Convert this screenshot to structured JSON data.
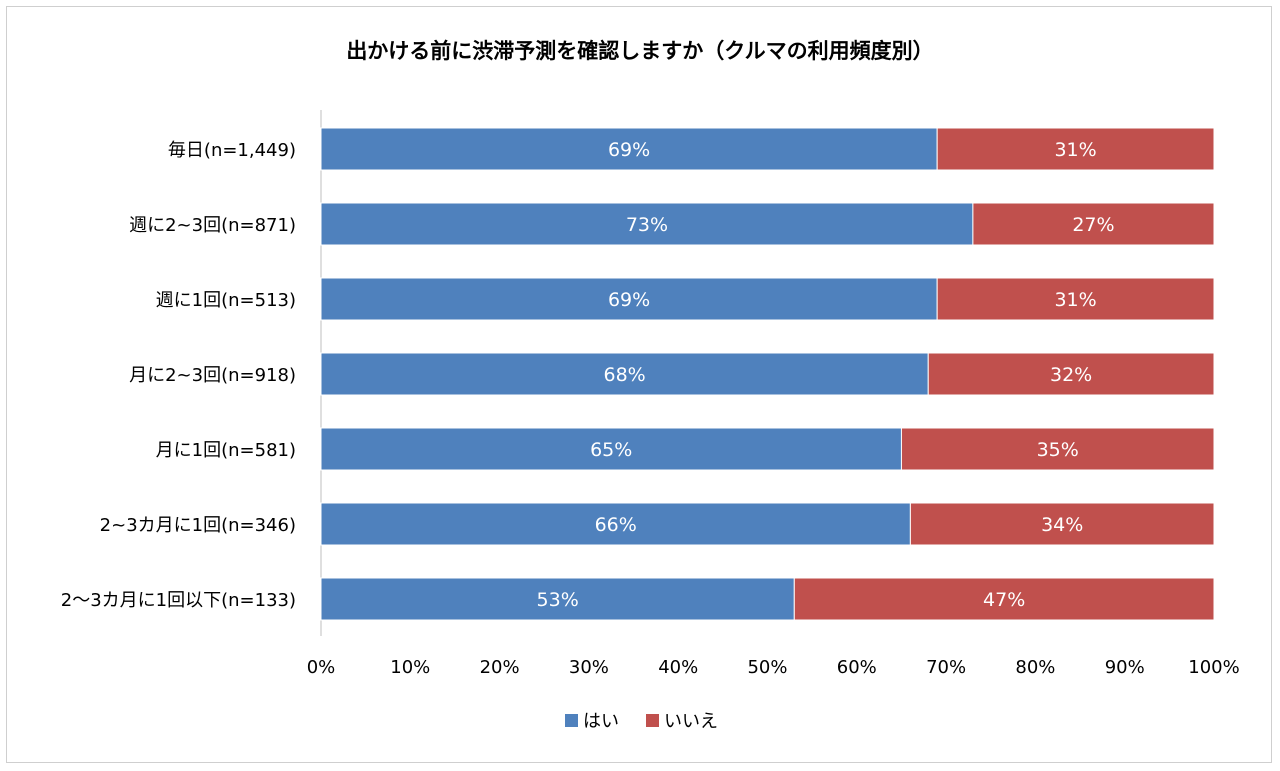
{
  "chart_data": {
    "type": "bar",
    "stacked": true,
    "orientation": "horizontal",
    "title": "出かける前に渋滞予測を確認しますか（クルマの利用頻度別）",
    "categories": [
      "毎日(n=1,449)",
      "週に2~3回(n=871)",
      "週に1回(n=513)",
      "月に2~3回(n=918)",
      "月に1回(n=581)",
      "2~3カ月に1回(n=346)",
      "2～3カ月に1回以下(n=133)"
    ],
    "series": [
      {
        "name": "はい",
        "color": "#4f81bd",
        "values": [
          69,
          73,
          69,
          68,
          65,
          66,
          53
        ],
        "labels": [
          "69%",
          "73%",
          "69%",
          "68%",
          "65%",
          "66%",
          "53%"
        ]
      },
      {
        "name": "いいえ",
        "color": "#c0504d",
        "values": [
          31,
          27,
          31,
          32,
          35,
          34,
          47
        ],
        "labels": [
          "31%",
          "27%",
          "31%",
          "32%",
          "35%",
          "34%",
          "47%"
        ]
      }
    ],
    "xlim": [
      0,
      100
    ],
    "xticks": [
      0,
      10,
      20,
      30,
      40,
      50,
      60,
      70,
      80,
      90,
      100
    ],
    "xtick_labels": [
      "0%",
      "10%",
      "20%",
      "30%",
      "40%",
      "50%",
      "60%",
      "70%",
      "80%",
      "90%",
      "100%"
    ],
    "grid": false,
    "legend": "bottom"
  }
}
